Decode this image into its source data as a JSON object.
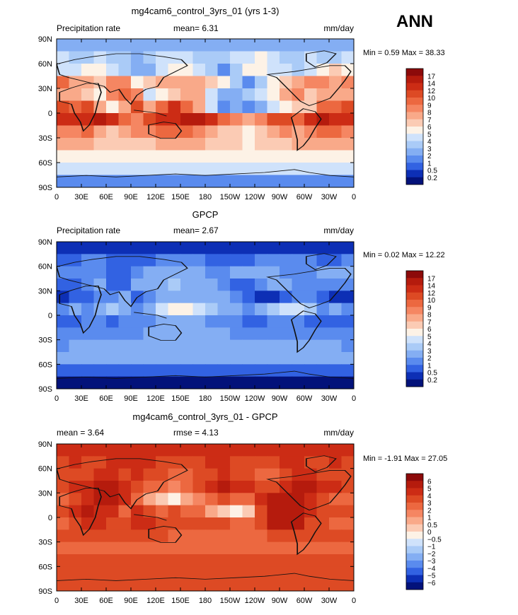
{
  "season_label": "ANN",
  "chart_data": [
    {
      "type": "heatmap",
      "title": "mg4cam6_control_3yrs_01 (yrs 1-3)",
      "left_label": "Precipitation rate",
      "center_label": "mean=",
      "center_value": "6.31",
      "right_label": "mm/day",
      "minmax": {
        "min_label": "Min =",
        "min_value": "0.59",
        "max_label": "Max =",
        "max_value": "38.33"
      },
      "xticks": [
        "0",
        "30E",
        "60E",
        "90E",
        "120E",
        "150E",
        "180",
        "150W",
        "120W",
        "90W",
        "60W",
        "30W",
        "0"
      ],
      "yticks": [
        "90N",
        "60N",
        "30N",
        "0",
        "30S",
        "60S",
        "90S"
      ],
      "colorbar_labels": [
        "17",
        "14",
        "12",
        "10",
        "9",
        "8",
        "7",
        "6",
        "5",
        "4",
        "3",
        "2",
        "1",
        "0.5",
        "0.2"
      ],
      "colorbar_colors": [
        "#8c0a0a",
        "#b51b0d",
        "#cc2c15",
        "#dd4a24",
        "#ec6840",
        "#f58662",
        "#f9a989",
        "#fbcbb4",
        "#fdf2e6",
        "#cfe2fb",
        "#aacbf7",
        "#84aef3",
        "#5a8bee",
        "#3262e2",
        "#0d2fb5",
        "#03127a"
      ],
      "rows": [
        [
          11,
          11,
          11,
          11,
          11,
          11,
          11,
          11,
          11,
          11,
          11,
          11,
          11,
          11,
          11,
          11,
          11,
          11,
          11,
          11,
          11,
          11,
          11,
          11
        ],
        [
          9,
          10,
          10,
          9,
          10,
          10,
          11,
          10,
          9,
          9,
          9,
          10,
          10,
          10,
          9,
          9,
          8,
          9,
          10,
          10,
          9,
          10,
          10,
          9
        ],
        [
          9,
          9,
          8,
          8,
          9,
          10,
          11,
          11,
          9,
          8,
          8,
          9,
          10,
          12,
          10,
          8,
          8,
          9,
          9,
          10,
          9,
          8,
          7,
          8
        ],
        [
          4,
          6,
          6,
          7,
          5,
          5,
          8,
          7,
          6,
          6,
          6,
          6,
          7,
          8,
          10,
          12,
          10,
          8,
          7,
          6,
          5,
          5,
          6,
          5
        ],
        [
          6,
          6,
          7,
          8,
          5,
          4,
          5,
          9,
          8,
          7,
          6,
          6,
          9,
          11,
          11,
          10,
          9,
          8,
          6,
          5,
          7,
          6,
          6,
          6
        ],
        [
          3,
          4,
          3,
          6,
          8,
          6,
          3,
          6,
          4,
          2,
          4,
          6,
          9,
          12,
          11,
          12,
          11,
          9,
          8,
          7,
          7,
          4,
          4,
          3
        ],
        [
          2,
          2,
          2,
          1,
          2,
          4,
          5,
          3,
          2,
          2,
          1,
          1,
          2,
          4,
          5,
          6,
          5,
          3,
          3,
          4,
          2,
          1,
          2,
          2
        ],
        [
          5,
          5,
          4,
          6,
          7,
          6,
          5,
          5,
          4,
          4,
          4,
          5,
          6,
          7,
          7,
          8,
          7,
          6,
          5,
          6,
          5,
          4,
          4,
          5
        ],
        [
          6,
          6,
          6,
          7,
          7,
          7,
          7,
          7,
          6,
          6,
          6,
          6,
          7,
          7,
          7,
          8,
          7,
          7,
          7,
          6,
          6,
          6,
          6,
          6
        ],
        [
          8,
          8,
          8,
          8,
          8,
          8,
          8,
          8,
          8,
          8,
          8,
          8,
          8,
          8,
          8,
          8,
          8,
          8,
          8,
          8,
          8,
          8,
          8,
          8
        ],
        [
          9,
          9,
          9,
          9,
          9,
          9,
          9,
          9,
          9,
          9,
          9,
          9,
          9,
          9,
          9,
          9,
          9,
          9,
          9,
          9,
          9,
          9,
          9,
          9
        ],
        [
          12,
          12,
          12,
          12,
          12,
          12,
          12,
          12,
          12,
          12,
          12,
          12,
          12,
          12,
          12,
          12,
          12,
          12,
          12,
          12,
          12,
          12,
          12,
          12
        ]
      ]
    },
    {
      "type": "heatmap",
      "title": "GPCP",
      "left_label": "Precipitation rate",
      "center_label": "mean=",
      "center_value": "2.67",
      "right_label": "mm/day",
      "minmax": {
        "min_label": "Min =",
        "min_value": "0.02",
        "max_label": "Max =",
        "max_value": "12.22"
      },
      "xticks": [
        "0",
        "30E",
        "60E",
        "90E",
        "120E",
        "150E",
        "180",
        "150W",
        "120W",
        "90W",
        "60W",
        "30W",
        "0"
      ],
      "yticks": [
        "90N",
        "60N",
        "30N",
        "0",
        "30S",
        "60S",
        "90S"
      ],
      "colorbar_labels": [
        "17",
        "14",
        "12",
        "10",
        "9",
        "8",
        "7",
        "6",
        "5",
        "4",
        "3",
        "2",
        "1",
        "0.5",
        "0.2"
      ],
      "colorbar_colors": [
        "#8c0a0a",
        "#b51b0d",
        "#cc2c15",
        "#dd4a24",
        "#ec6840",
        "#f58662",
        "#f9a989",
        "#fbcbb4",
        "#fdf2e6",
        "#cfe2fb",
        "#aacbf7",
        "#84aef3",
        "#5a8bee",
        "#3262e2",
        "#0d2fb5",
        "#03127a"
      ],
      "rows": [
        [
          14,
          14,
          14,
          14,
          14,
          14,
          14,
          14,
          14,
          14,
          14,
          14,
          14,
          14,
          14,
          14,
          14,
          14,
          14,
          14,
          14,
          14,
          14,
          14
        ],
        [
          13,
          13,
          12,
          12,
          13,
          13,
          13,
          13,
          12,
          12,
          12,
          12,
          13,
          13,
          13,
          13,
          12,
          12,
          12,
          12,
          12,
          13,
          13,
          12
        ],
        [
          12,
          12,
          12,
          12,
          13,
          13,
          12,
          11,
          11,
          11,
          11,
          11,
          12,
          12,
          11,
          11,
          11,
          11,
          12,
          12,
          12,
          11,
          11,
          11
        ],
        [
          13,
          13,
          12,
          11,
          13,
          13,
          11,
          11,
          11,
          10,
          11,
          11,
          11,
          12,
          13,
          13,
          12,
          11,
          11,
          12,
          12,
          12,
          12,
          12
        ],
        [
          14,
          13,
          13,
          12,
          12,
          11,
          13,
          12,
          11,
          11,
          11,
          11,
          11,
          11,
          12,
          13,
          14,
          14,
          13,
          12,
          12,
          13,
          14,
          14
        ],
        [
          12,
          11,
          12,
          11,
          10,
          11,
          12,
          11,
          9,
          8,
          8,
          9,
          10,
          11,
          11,
          12,
          11,
          10,
          9,
          9,
          10,
          12,
          11,
          12
        ],
        [
          13,
          13,
          12,
          12,
          13,
          12,
          12,
          12,
          11,
          11,
          11,
          11,
          12,
          12,
          12,
          13,
          13,
          12,
          12,
          12,
          13,
          13,
          13,
          13
        ],
        [
          12,
          12,
          12,
          12,
          12,
          12,
          12,
          11,
          11,
          11,
          11,
          11,
          11,
          11,
          12,
          12,
          12,
          12,
          12,
          12,
          12,
          12,
          12,
          12
        ],
        [
          12,
          11,
          11,
          11,
          11,
          11,
          11,
          11,
          11,
          11,
          11,
          11,
          11,
          11,
          11,
          11,
          11,
          11,
          11,
          11,
          11,
          11,
          11,
          12
        ],
        [
          11,
          11,
          11,
          11,
          11,
          11,
          11,
          11,
          11,
          11,
          11,
          11,
          11,
          11,
          11,
          11,
          11,
          11,
          11,
          11,
          11,
          11,
          11,
          11
        ],
        [
          13,
          13,
          13,
          13,
          13,
          13,
          13,
          13,
          13,
          13,
          13,
          13,
          13,
          13,
          13,
          13,
          13,
          13,
          13,
          13,
          13,
          13,
          13,
          13
        ],
        [
          15,
          15,
          15,
          15,
          15,
          15,
          15,
          15,
          15,
          15,
          15,
          15,
          15,
          15,
          15,
          15,
          15,
          15,
          15,
          15,
          15,
          15,
          15,
          15
        ]
      ]
    },
    {
      "type": "heatmap",
      "title": "mg4cam6_control_3yrs_01 - GPCP",
      "left_label": "mean =",
      "left_value": "3.64",
      "center_label": "rmse =",
      "center_value": "4.13",
      "right_label": "mm/day",
      "minmax": {
        "min_label": "Min =",
        "min_value": "-1.91",
        "max_label": "Max =",
        "max_value": "27.05"
      },
      "xticks": [
        "0",
        "30E",
        "60E",
        "90E",
        "120E",
        "150E",
        "180",
        "150W",
        "120W",
        "90W",
        "60W",
        "30W",
        "0"
      ],
      "yticks": [
        "90N",
        "60N",
        "30N",
        "0",
        "30S",
        "60S",
        "90S"
      ],
      "colorbar_labels": [
        "6",
        "5",
        "4",
        "3",
        "2",
        "1",
        "0.5",
        "0",
        "−0.5",
        "−1",
        "−2",
        "−3",
        "−4",
        "−5",
        "−6"
      ],
      "colorbar_colors": [
        "#8c0a0a",
        "#b51b0d",
        "#cc2c15",
        "#dd4a24",
        "#ec6840",
        "#f58662",
        "#f9a989",
        "#fbcbb4",
        "#fdf2e6",
        "#cfe2fb",
        "#aacbf7",
        "#84aef3",
        "#5a8bee",
        "#3262e2",
        "#0d2fb5",
        "#03127a"
      ],
      "rows": [
        [
          2,
          2,
          2,
          2,
          2,
          2,
          2,
          2,
          2,
          2,
          2,
          2,
          2,
          2,
          2,
          2,
          2,
          2,
          2,
          2,
          2,
          2,
          2,
          2
        ],
        [
          3,
          2,
          3,
          3,
          2,
          2,
          2,
          2,
          3,
          3,
          3,
          3,
          2,
          2,
          3,
          3,
          3,
          3,
          2,
          2,
          3,
          3,
          2,
          3
        ],
        [
          3,
          3,
          3,
          2,
          2,
          3,
          2,
          3,
          3,
          4,
          4,
          3,
          3,
          2,
          3,
          3,
          4,
          4,
          3,
          2,
          2,
          3,
          3,
          3
        ],
        [
          3,
          2,
          2,
          1,
          1,
          2,
          3,
          4,
          4,
          5,
          4,
          3,
          2,
          1,
          2,
          2,
          3,
          3,
          2,
          1,
          1,
          2,
          2,
          3
        ],
        [
          4,
          3,
          2,
          1,
          1,
          2,
          4,
          6,
          7,
          8,
          6,
          5,
          4,
          3,
          4,
          4,
          2,
          1,
          1,
          1,
          2,
          3,
          4,
          4
        ],
        [
          3,
          2,
          1,
          2,
          2,
          4,
          2,
          3,
          4,
          3,
          4,
          4,
          6,
          7,
          8,
          7,
          3,
          1,
          1,
          1,
          2,
          3,
          3,
          3
        ],
        [
          4,
          3,
          2,
          2,
          3,
          3,
          2,
          2,
          3,
          3,
          3,
          3,
          3,
          3,
          4,
          4,
          3,
          1,
          1,
          1,
          3,
          3,
          4,
          4
        ],
        [
          3,
          3,
          3,
          3,
          3,
          3,
          3,
          3,
          3,
          4,
          4,
          4,
          4,
          4,
          4,
          4,
          4,
          3,
          3,
          3,
          3,
          3,
          3,
          3
        ],
        [
          4,
          4,
          4,
          4,
          4,
          4,
          4,
          4,
          4,
          4,
          4,
          4,
          4,
          4,
          4,
          4,
          4,
          4,
          4,
          4,
          4,
          4,
          4,
          4
        ],
        [
          3,
          3,
          3,
          3,
          3,
          3,
          3,
          3,
          3,
          3,
          3,
          3,
          3,
          3,
          3,
          3,
          3,
          3,
          3,
          3,
          3,
          3,
          3,
          3
        ],
        [
          3,
          3,
          3,
          3,
          3,
          3,
          3,
          3,
          3,
          3,
          3,
          3,
          3,
          3,
          3,
          3,
          3,
          3,
          3,
          3,
          3,
          3,
          3,
          3
        ],
        [
          3,
          3,
          3,
          3,
          3,
          3,
          3,
          3,
          3,
          3,
          3,
          3,
          3,
          3,
          3,
          3,
          3,
          3,
          3,
          3,
          3,
          3,
          3,
          3
        ]
      ]
    }
  ]
}
